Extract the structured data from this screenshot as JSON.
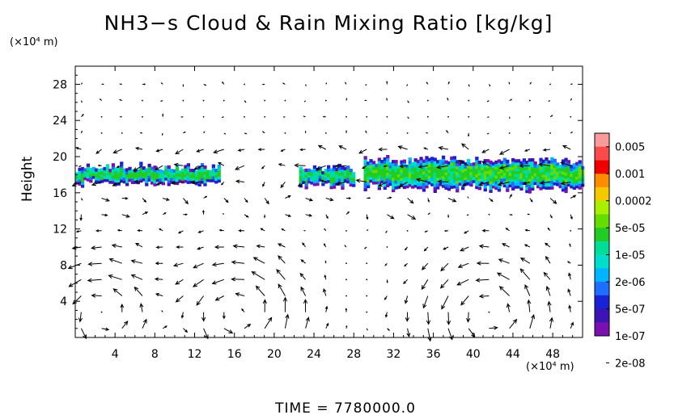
{
  "chart_data": {
    "type": "heatmap",
    "title": "NH3−s Cloud & Rain Mixing Ratio [kg/kg]",
    "ylabel": "Height",
    "yunit": "(×10⁴ m)",
    "xunit": "(×10⁴ m)",
    "footer": "TIME  =  7780000.0",
    "xlim": [
      0,
      51
    ],
    "ylim": [
      0,
      30
    ],
    "xticks": [
      4,
      8,
      12,
      16,
      20,
      24,
      28,
      32,
      36,
      40,
      44,
      48
    ],
    "yticks": [
      4,
      8,
      12,
      16,
      20,
      24,
      28
    ],
    "colorbar": {
      "labels": [
        "0.005",
        "0.001",
        "0.0002",
        "5e-05",
        "1e-05",
        "2e-06",
        "5e-07",
        "1e-07",
        "2e-08"
      ],
      "colors": [
        "#fa9a9a",
        "#fa4a4a",
        "#ee0000",
        "#ff8c00",
        "#f5c800",
        "#aaee00",
        "#66dd00",
        "#22cc22",
        "#00dd99",
        "#00ddcc",
        "#00b4ff",
        "#1e6eff",
        "#1a22d6",
        "#3c14b4",
        "#7a10b0"
      ]
    },
    "cloud_regions": [
      {
        "x0": 0.0,
        "x1": 14.5,
        "y0": 16.8,
        "y1": 19.0
      },
      {
        "x0": 22.5,
        "x1": 28.0,
        "y0": 16.6,
        "y1": 18.9
      },
      {
        "x0": 29.0,
        "x1": 51.0,
        "y0": 16.2,
        "y1": 19.8
      }
    ],
    "wind_field": {
      "description": "velocity vectors",
      "rotor_centers_x": [
        2.5,
        16.5,
        41.5
      ],
      "rotor_center_y": 2.5
    }
  }
}
